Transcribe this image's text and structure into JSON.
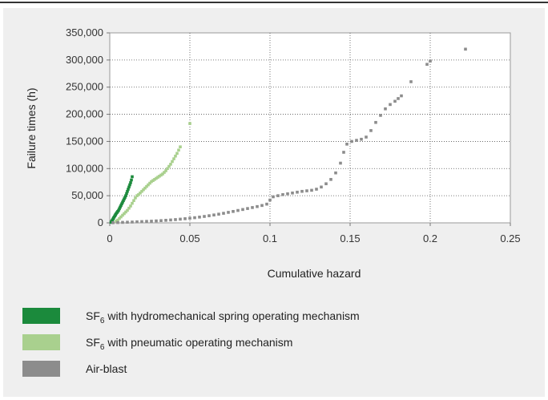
{
  "chart_data": {
    "type": "scatter",
    "xlabel": "Cumulative hazard",
    "ylabel": "Failure times (h)",
    "xlim": [
      0,
      0.25
    ],
    "ylim": [
      0,
      350000
    ],
    "x_ticks": [
      "0",
      "0.05",
      "0.1",
      "0.15",
      "0.2",
      "0.25"
    ],
    "y_ticks": [
      "0",
      "50,000",
      "100,000",
      "150,000",
      "200,000",
      "250,000",
      "300,000",
      "350,000"
    ],
    "grid": "dotted",
    "legend_position": "bottom",
    "series": [
      {
        "name": "SF6 with hydromechanical spring operating mechanism",
        "legend_main": "SF",
        "legend_sub": "6",
        "legend_rest": " with hydromechanical spring operating mechanism",
        "color": "#1b8a3c",
        "points": [
          [
            0.0008,
            1000
          ],
          [
            0.0012,
            3000
          ],
          [
            0.0016,
            5000
          ],
          [
            0.002,
            7000
          ],
          [
            0.0024,
            9000
          ],
          [
            0.0028,
            11000
          ],
          [
            0.0032,
            13000
          ],
          [
            0.0036,
            15000
          ],
          [
            0.004,
            17000
          ],
          [
            0.0045,
            19000
          ],
          [
            0.005,
            21000
          ],
          [
            0.0055,
            23000
          ],
          [
            0.006,
            26000
          ],
          [
            0.0065,
            29000
          ],
          [
            0.007,
            32000
          ],
          [
            0.0075,
            35000
          ],
          [
            0.008,
            38000
          ],
          [
            0.0085,
            41000
          ],
          [
            0.009,
            44000
          ],
          [
            0.0095,
            47000
          ],
          [
            0.01,
            50000
          ],
          [
            0.0105,
            54000
          ],
          [
            0.011,
            58000
          ],
          [
            0.0115,
            62000
          ],
          [
            0.012,
            66000
          ],
          [
            0.0125,
            70000
          ],
          [
            0.013,
            74000
          ],
          [
            0.0135,
            79000
          ],
          [
            0.014,
            85000
          ]
        ]
      },
      {
        "name": "SF6 with pneumatic operating mechanism",
        "legend_main": "SF",
        "legend_sub": "6",
        "legend_rest": " with pneumatic operating mechanism",
        "color": "#a9d08e",
        "points": [
          [
            0.004,
            3000
          ],
          [
            0.005,
            5000
          ],
          [
            0.006,
            8000
          ],
          [
            0.007,
            11000
          ],
          [
            0.008,
            14000
          ],
          [
            0.009,
            17000
          ],
          [
            0.01,
            20000
          ],
          [
            0.011,
            23000
          ],
          [
            0.012,
            27000
          ],
          [
            0.013,
            31000
          ],
          [
            0.014,
            36000
          ],
          [
            0.015,
            41000
          ],
          [
            0.016,
            46000
          ],
          [
            0.017,
            50000
          ],
          [
            0.018,
            52000
          ],
          [
            0.019,
            55000
          ],
          [
            0.02,
            58000
          ],
          [
            0.021,
            61000
          ],
          [
            0.022,
            64000
          ],
          [
            0.023,
            67000
          ],
          [
            0.024,
            70000
          ],
          [
            0.025,
            73000
          ],
          [
            0.026,
            76000
          ],
          [
            0.027,
            78000
          ],
          [
            0.028,
            80000
          ],
          [
            0.029,
            82000
          ],
          [
            0.03,
            84000
          ],
          [
            0.031,
            86000
          ],
          [
            0.032,
            88000
          ],
          [
            0.033,
            90000
          ],
          [
            0.034,
            93000
          ],
          [
            0.035,
            96000
          ],
          [
            0.036,
            100000
          ],
          [
            0.037,
            104000
          ],
          [
            0.038,
            108000
          ],
          [
            0.039,
            113000
          ],
          [
            0.04,
            118000
          ],
          [
            0.041,
            123000
          ],
          [
            0.042,
            128000
          ],
          [
            0.043,
            134000
          ],
          [
            0.044,
            140000
          ],
          [
            0.05,
            183000
          ]
        ]
      },
      {
        "name": "Air-blast",
        "legend_main": "Air-blast",
        "legend_sub": "",
        "legend_rest": "",
        "color": "#8c8c8c",
        "points": [
          [
            0.002,
            300
          ],
          [
            0.005,
            600
          ],
          [
            0.008,
            900
          ],
          [
            0.011,
            1200
          ],
          [
            0.014,
            1500
          ],
          [
            0.017,
            1900
          ],
          [
            0.02,
            2300
          ],
          [
            0.023,
            2700
          ],
          [
            0.026,
            3100
          ],
          [
            0.029,
            3600
          ],
          [
            0.032,
            4100
          ],
          [
            0.035,
            4700
          ],
          [
            0.038,
            5300
          ],
          [
            0.041,
            6000
          ],
          [
            0.044,
            6800
          ],
          [
            0.047,
            7600
          ],
          [
            0.05,
            8500
          ],
          [
            0.053,
            9500
          ],
          [
            0.056,
            10600
          ],
          [
            0.059,
            11800
          ],
          [
            0.062,
            13100
          ],
          [
            0.065,
            14500
          ],
          [
            0.068,
            16000
          ],
          [
            0.071,
            17600
          ],
          [
            0.074,
            19300
          ],
          [
            0.077,
            21000
          ],
          [
            0.08,
            22800
          ],
          [
            0.083,
            24600
          ],
          [
            0.086,
            26400
          ],
          [
            0.089,
            28200
          ],
          [
            0.092,
            30000
          ],
          [
            0.095,
            32000
          ],
          [
            0.098,
            34500
          ],
          [
            0.1,
            42000
          ],
          [
            0.102,
            48000
          ],
          [
            0.105,
            50000
          ],
          [
            0.108,
            52000
          ],
          [
            0.111,
            53500
          ],
          [
            0.114,
            55000
          ],
          [
            0.117,
            56500
          ],
          [
            0.12,
            58000
          ],
          [
            0.123,
            59000
          ],
          [
            0.126,
            60000
          ],
          [
            0.129,
            62000
          ],
          [
            0.132,
            66000
          ],
          [
            0.135,
            72000
          ],
          [
            0.138,
            80000
          ],
          [
            0.141,
            92000
          ],
          [
            0.144,
            110000
          ],
          [
            0.146,
            130000
          ],
          [
            0.148,
            145000
          ],
          [
            0.151,
            150000
          ],
          [
            0.154,
            152000
          ],
          [
            0.157,
            154000
          ],
          [
            0.16,
            158000
          ],
          [
            0.163,
            170000
          ],
          [
            0.166,
            185000
          ],
          [
            0.169,
            198000
          ],
          [
            0.172,
            210000
          ],
          [
            0.175,
            218000
          ],
          [
            0.178,
            224000
          ],
          [
            0.18,
            229000
          ],
          [
            0.182,
            234000
          ],
          [
            0.188,
            260000
          ],
          [
            0.198,
            292000
          ],
          [
            0.2,
            298000
          ],
          [
            0.222,
            320000
          ]
        ]
      }
    ]
  }
}
